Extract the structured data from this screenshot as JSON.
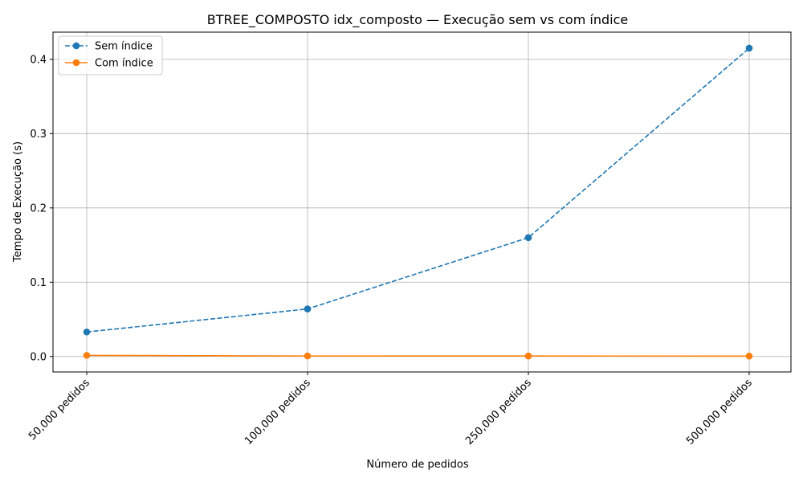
{
  "chart_data": {
    "type": "line",
    "title": "BTREE_COMPOSTO idx_composto — Execução sem vs com índice",
    "xlabel": "Número de pedidos",
    "ylabel": "Tempo de Execução (s)",
    "categories": [
      "50,000 pedidos",
      "100,000 pedidos",
      "250,000 pedidos",
      "500,000 pedidos"
    ],
    "ylim": [
      -0.0208,
      0.4366
    ],
    "yticks": [
      0.0,
      0.1,
      0.2,
      0.3,
      0.4
    ],
    "ytick_labels": [
      "0.0",
      "0.1",
      "0.2",
      "0.3",
      "0.4"
    ],
    "grid": true,
    "legend_position": "top-left",
    "series": [
      {
        "name": "Sem índice",
        "values": [
          0.033,
          0.064,
          0.16,
          0.415
        ],
        "color": "#1f77b4",
        "linestyle": "dashed",
        "marker": "circle"
      },
      {
        "name": "Com índice",
        "values": [
          0.0015,
          0.0007,
          0.0006,
          0.0005
        ],
        "color": "#ff7f0e",
        "linestyle": "solid",
        "marker": "circle"
      }
    ]
  }
}
